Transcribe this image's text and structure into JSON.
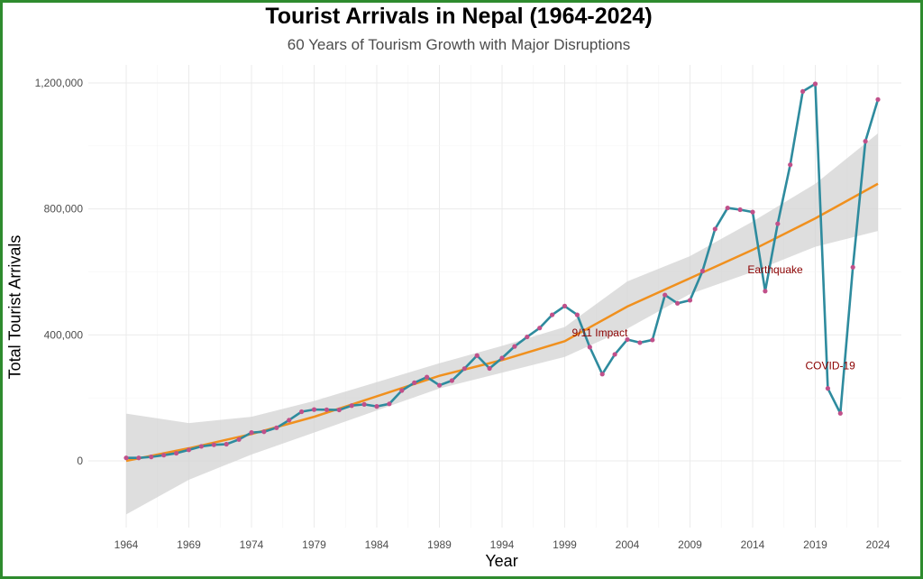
{
  "chart_data": {
    "type": "line",
    "title": "Tourist Arrivals in Nepal (1964-2024)",
    "subtitle": "60 Years of Tourism Growth with Major Disruptions",
    "xlabel": "Year",
    "ylabel": "Total Tourist Arrivals",
    "xlim": [
      1964,
      2024
    ],
    "ylim": [
      -200000,
      1250000
    ],
    "x_ticks": [
      1964,
      1969,
      1974,
      1979,
      1984,
      1989,
      1994,
      1999,
      2004,
      2009,
      2014,
      2019,
      2024
    ],
    "y_ticks": [
      0,
      400000,
      800000,
      1200000
    ],
    "y_tick_labels": [
      "0",
      "400,000",
      "800,000",
      "1,200,000"
    ],
    "grid": true,
    "colors": {
      "line": "#2e8b9e",
      "points": "#c0508a",
      "trend": "#f0901e",
      "band": "#d3d3d3",
      "annotation": "#8b0000",
      "border": "#2e8b2e"
    },
    "series": [
      {
        "x": [
          1964,
          1965,
          1966,
          1967,
          1968,
          1969,
          1970,
          1971,
          1972,
          1973,
          1974,
          1975,
          1976,
          1977,
          1978,
          1979,
          1980,
          1981,
          1982,
          1983,
          1984,
          1985,
          1986,
          1987,
          1988,
          1989,
          1990,
          1991,
          1992,
          1993,
          1994,
          1995,
          1996,
          1997,
          1998,
          1999,
          2000,
          2001,
          2002,
          2003,
          2004,
          2005,
          2006,
          2007,
          2008,
          2009,
          2010,
          2011,
          2012,
          2013,
          2014,
          2015,
          2016,
          2017,
          2018,
          2019,
          2020,
          2021,
          2022,
          2023,
          2024
        ],
        "values": [
          9526,
          9388,
          12567,
          18093,
          24209,
          34901,
          45970,
          51000,
          52930,
          68047,
          89838,
          92440,
          105108,
          129329,
          156123,
          162897,
          162276,
          161669,
          175448,
          179405,
          172978,
          180989,
          223331,
          248080,
          265943,
          239945,
          254885,
          292995,
          334353,
          293567,
          326531,
          363395,
          393613,
          421857,
          463684,
          491504,
          463646,
          361237,
          275468,
          338132,
          385297,
          375398,
          383926,
          526705,
          500277,
          509956,
          602867,
          736215,
          803092,
          797616,
          790118,
          538970,
          753002,
          940218,
          1173072,
          1197191,
          230085,
          150962,
          614869,
          1014876,
          1147548
        ]
      },
      {
        "name": "trend",
        "x": [
          1964,
          1969,
          1974,
          1979,
          1984,
          1989,
          1994,
          1999,
          2004,
          2009,
          2014,
          2019,
          2024
        ],
        "values": [
          0,
          40000,
          85000,
          140000,
          205000,
          270000,
          320000,
          380000,
          490000,
          580000,
          670000,
          770000,
          880000
        ],
        "band_lower": [
          -170000,
          -60000,
          20000,
          90000,
          160000,
          230000,
          280000,
          330000,
          420000,
          530000,
          600000,
          680000,
          730000
        ],
        "band_upper": [
          150000,
          120000,
          140000,
          190000,
          250000,
          310000,
          365000,
          425000,
          570000,
          650000,
          760000,
          880000,
          1040000
        ]
      }
    ],
    "annotations": [
      {
        "text": "9/11 Impact",
        "x": 2001.8,
        "y": 395000
      },
      {
        "text": "Earthquake",
        "x": 2015.8,
        "y": 595000
      },
      {
        "text": "COVID-19",
        "x": 2020.2,
        "y": 290000
      }
    ]
  }
}
